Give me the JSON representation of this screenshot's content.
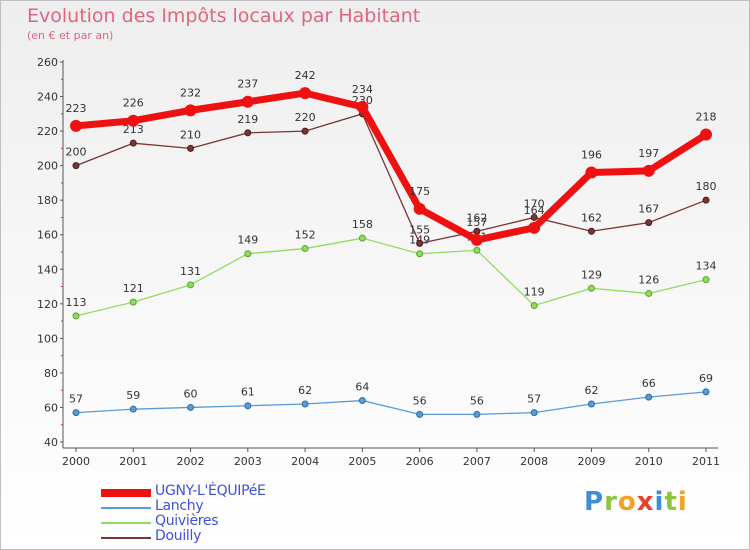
{
  "header": {
    "title": "Evolution des Impôts locaux par Habitant",
    "subtitle": "(en € et par an)"
  },
  "chart_data": {
    "type": "line",
    "title": "Evolution des Impôts locaux par Habitant",
    "subtitle": "(en € et par an)",
    "xlabel": "",
    "ylabel": "",
    "x": [
      "2000",
      "2001",
      "2002",
      "2003",
      "2004",
      "2005",
      "2006",
      "2007",
      "2008",
      "2009",
      "2010",
      "2011"
    ],
    "ylim": [
      40,
      260
    ],
    "yticks": [
      40,
      60,
      80,
      100,
      120,
      140,
      160,
      180,
      200,
      220,
      240,
      260
    ],
    "grid": false,
    "legend_position": "bottom-left",
    "series": [
      {
        "name": "UGNY-L'ÉQUIPéE",
        "color": "#ee1111",
        "values": [
          223,
          226,
          232,
          237,
          242,
          234,
          175,
          157,
          164,
          196,
          197,
          218
        ],
        "labels": [
          "223",
          "226",
          "232",
          "237",
          "242",
          "234",
          "175",
          "157",
          "164",
          "196",
          "197",
          "218"
        ]
      },
      {
        "name": "Lanchy",
        "color": "#5b9bd5",
        "values": [
          57,
          59,
          60,
          61,
          62,
          64,
          56,
          56,
          57,
          62,
          66,
          69
        ],
        "labels": [
          "57",
          "59",
          "60",
          "61",
          "62",
          "64",
          "56",
          "56",
          "57",
          "62",
          "66",
          "69"
        ]
      },
      {
        "name": "Quivières",
        "color": "#8fdc5e",
        "values": [
          113,
          121,
          131,
          149,
          152,
          158,
          149,
          151,
          119,
          129,
          126,
          134
        ],
        "labels": [
          "113",
          "121",
          "131",
          "149",
          "152",
          "158",
          "149",
          "151",
          "119",
          "129",
          "126",
          "134"
        ]
      },
      {
        "name": "Douilly",
        "color": "#7a3535",
        "values": [
          200,
          213,
          210,
          219,
          220,
          230,
          155,
          162,
          170,
          162,
          167,
          180
        ],
        "labels": [
          "200",
          "213",
          "210",
          "219",
          "220",
          "230",
          "155",
          "162",
          "170",
          "162",
          "167",
          "180"
        ]
      }
    ]
  },
  "legend": {
    "items": [
      {
        "label": "UGNY-L'ÉQUIPéE",
        "color": "#ee1111"
      },
      {
        "label": "Lanchy",
        "color": "#5b9bd5"
      },
      {
        "label": "Quivières",
        "color": "#8fdc5e"
      },
      {
        "label": "Douilly",
        "color": "#7a3535"
      }
    ]
  },
  "brand": {
    "letters": [
      "P",
      "r",
      "o",
      "x",
      "i",
      "t",
      "i"
    ],
    "colors": [
      "#3a8fd8",
      "#8fc43c",
      "#f2a127",
      "#e8412c",
      "#3a8fd8",
      "#8fc43c",
      "#f2a127"
    ]
  }
}
